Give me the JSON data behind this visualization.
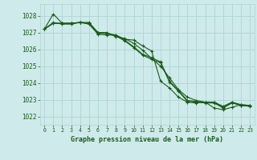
{
  "title": "Graphe pression niveau de la mer (hPa)",
  "background_color": "#ceeaea",
  "grid_color": "#b0d4d4",
  "line_color": "#1a5c1a",
  "xlim": [
    -0.5,
    23.5
  ],
  "ylim": [
    1021.5,
    1028.7
  ],
  "yticks": [
    1022,
    1023,
    1024,
    1025,
    1026,
    1027,
    1028
  ],
  "xticks": [
    0,
    1,
    2,
    3,
    4,
    5,
    6,
    7,
    8,
    9,
    10,
    11,
    12,
    13,
    14,
    15,
    16,
    17,
    18,
    19,
    20,
    21,
    22,
    23
  ],
  "series": [
    [
      1027.2,
      1027.55,
      1027.55,
      1027.55,
      1027.6,
      1027.55,
      1026.95,
      1026.95,
      1026.8,
      1026.5,
      1026.1,
      1025.65,
      1025.4,
      1025.2,
      1024.05,
      1023.5,
      1022.9,
      1022.85,
      1022.8,
      1022.8,
      1022.5,
      1022.8,
      1022.65,
      1022.6
    ],
    [
      1027.2,
      1028.1,
      1027.55,
      1027.55,
      1027.6,
      1027.55,
      1027.0,
      1027.0,
      1026.75,
      1026.65,
      1026.35,
      1025.95,
      1025.45,
      1025.0,
      1024.3,
      1023.6,
      1023.15,
      1022.95,
      1022.85,
      1022.85,
      1022.6,
      1022.85,
      1022.65,
      1022.65
    ],
    [
      1027.2,
      1027.55,
      1027.55,
      1027.55,
      1027.6,
      1027.6,
      1027.0,
      1026.95,
      1026.85,
      1026.55,
      1026.15,
      1025.7,
      1025.5,
      1025.25,
      1024.1,
      1023.55,
      1022.95,
      1022.9,
      1022.85,
      1022.85,
      1022.55,
      1022.85,
      1022.7,
      1022.65
    ],
    [
      1027.2,
      1027.6,
      1027.5,
      1027.5,
      1027.6,
      1027.5,
      1026.9,
      1026.85,
      1026.85,
      1026.6,
      1026.55,
      1026.2,
      1025.9,
      1024.1,
      1023.7,
      1023.15,
      1022.85,
      1022.8,
      1022.85,
      1022.5,
      1022.4,
      1022.55,
      1022.7,
      1022.65
    ]
  ]
}
